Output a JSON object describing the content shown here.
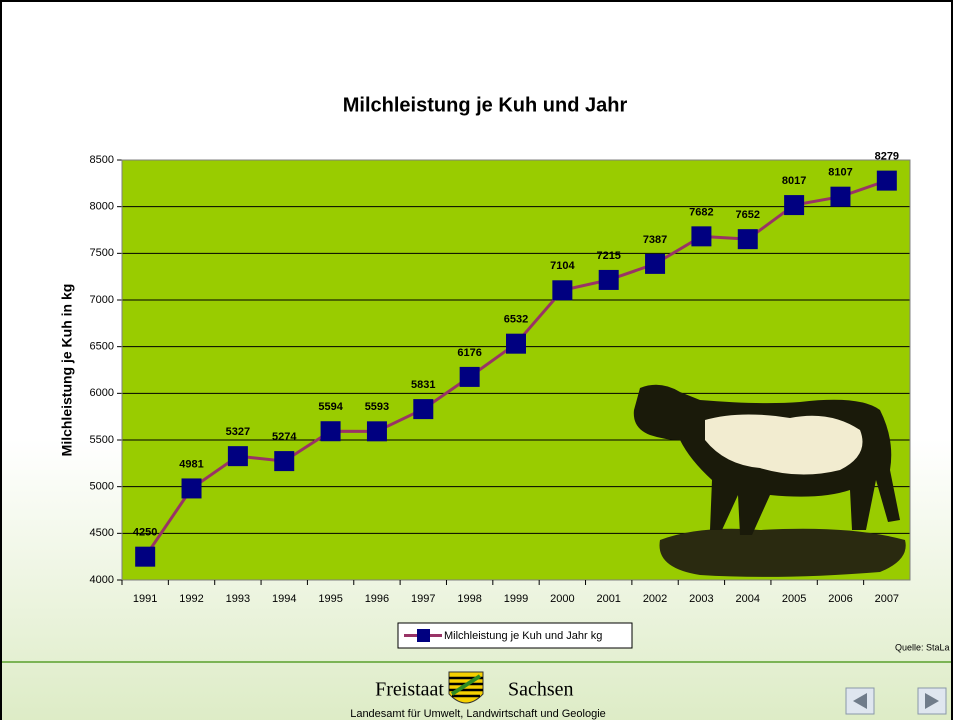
{
  "chart_data": {
    "type": "line",
    "title": "Milchleistung je Kuh und Jahr",
    "y_label": "Milchleistung je Kuh  in kg",
    "categories": [
      "1991",
      "1992",
      "1993",
      "1994",
      "1995",
      "1996",
      "1997",
      "1998",
      "1999",
      "2000",
      "2001",
      "2002",
      "2003",
      "2004",
      "2005",
      "2006",
      "2007"
    ],
    "series": [
      {
        "name": "Milchleistung je Kuh und Jahr kg",
        "color": "#993366",
        "marker_color": "#000080",
        "values": [
          4250,
          4981,
          5327,
          5274,
          5594,
          5593,
          5831,
          6176,
          6532,
          7104,
          7215,
          7387,
          7682,
          7652,
          8017,
          8107,
          8279
        ]
      }
    ],
    "ylim": [
      4000,
      8500
    ],
    "yticks": [
      4000,
      4500,
      5000,
      5500,
      6000,
      6500,
      7000,
      7500,
      8000,
      8500
    ],
    "grid": true,
    "plot_color": "#99cc00",
    "legend": "bottom"
  },
  "source": "Quelle: StaLa",
  "footer": {
    "left": "Freistaat",
    "right": "Sachsen",
    "agency": "Landesamt für Umwelt, Landwirtschaft und Geologie"
  }
}
